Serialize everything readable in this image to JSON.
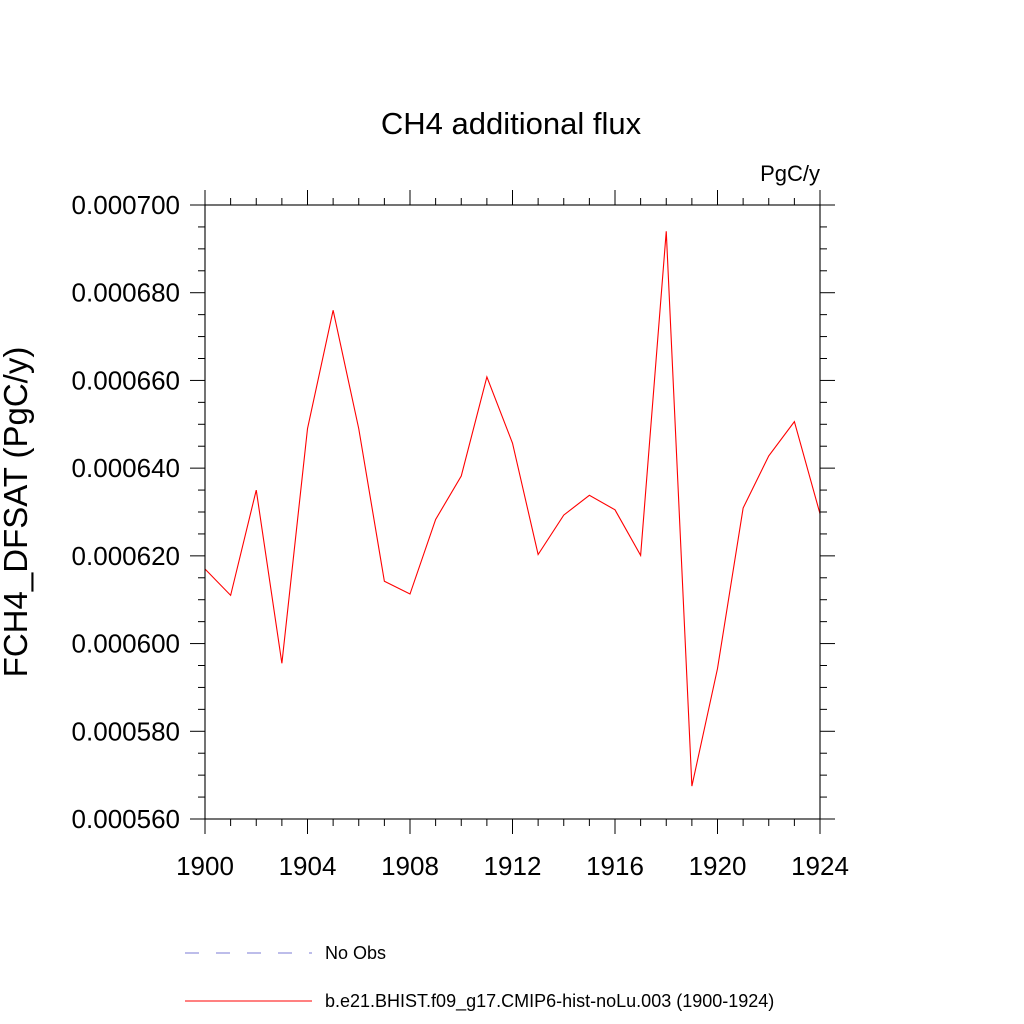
{
  "chart_data": {
    "type": "line",
    "title": "CH4 additional flux",
    "units": "PgC/y",
    "xlabel": "",
    "ylabel": "FCH4_DFSAT  (PgC/y)",
    "xlim": [
      1900,
      1924
    ],
    "ylim": [
      0.00056,
      0.0007
    ],
    "x_ticks": [
      1900,
      1904,
      1908,
      1912,
      1916,
      1920,
      1924
    ],
    "x_tick_labels": [
      "1900",
      "1904",
      "1908",
      "1912",
      "1916",
      "1920",
      "1924"
    ],
    "y_ticks": [
      0.00056,
      0.00058,
      0.0006,
      0.00062,
      0.00064,
      0.00066,
      0.00068,
      0.0007
    ],
    "y_tick_labels": [
      "0.000560",
      "0.000580",
      "0.000600",
      "0.000620",
      "0.000640",
      "0.000660",
      "0.000680",
      "0.000700"
    ],
    "grid": false,
    "legend_position": "bottom",
    "series": [
      {
        "name": "b.e21.BHIST.f09_g17.CMIP6-hist-noLu.003 (1900-1924)",
        "color": "#ff0000",
        "line_style": "solid",
        "x": [
          1900,
          1901,
          1902,
          1903,
          1904,
          1905,
          1906,
          1907,
          1908,
          1909,
          1910,
          1911,
          1912,
          1913,
          1914,
          1915,
          1916,
          1917,
          1918,
          1919,
          1920,
          1921,
          1922,
          1923,
          1924
        ],
        "values": [
          0.000617,
          0.000611,
          0.000635,
          0.0005955,
          0.000649,
          0.000676,
          0.000649,
          0.0006142,
          0.0006113,
          0.0006283,
          0.0006382,
          0.0006608,
          0.0006457,
          0.0006203,
          0.0006293,
          0.0006338,
          0.0006305,
          0.0006201,
          0.000694,
          0.0005675,
          0.0005943,
          0.0006309,
          0.0006428,
          0.0006506,
          0.0006296
        ]
      }
    ],
    "legend": [
      {
        "label": "No Obs",
        "color": "#7b7bd6",
        "line_style": "dashed"
      },
      {
        "label": "b.e21.BHIST.f09_g17.CMIP6-hist-noLu.003 (1900-1924)",
        "color": "#ff0000",
        "line_style": "solid"
      }
    ]
  }
}
